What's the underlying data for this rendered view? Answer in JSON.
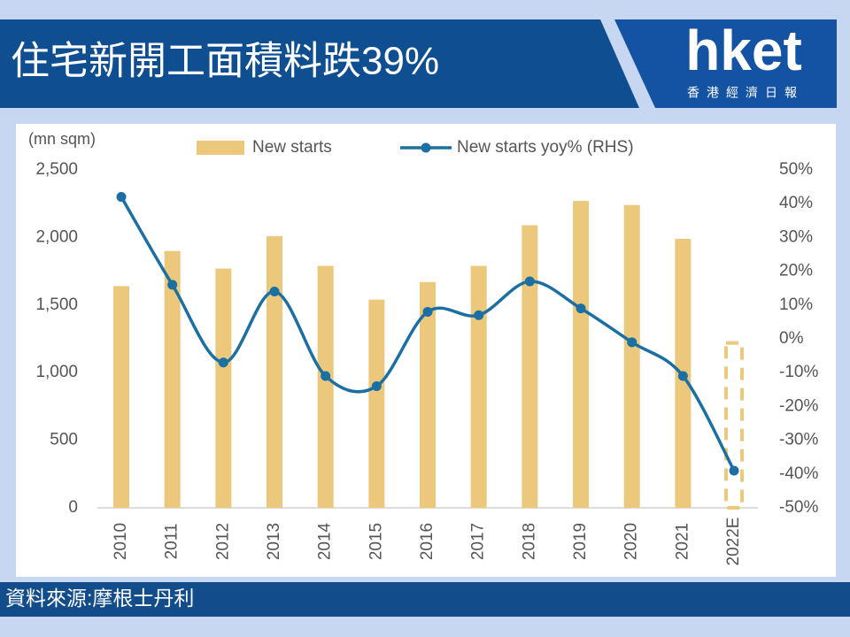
{
  "header": {
    "title": "住宅新開工面積料跌39%",
    "logo": "hket",
    "logo_subtitle": "香港經濟日報"
  },
  "footer": {
    "source": "資料來源:摩根士丹利"
  },
  "chart_data": {
    "type": "bar-line",
    "y_label": "(mn sqm)",
    "categories": [
      "2010",
      "2011",
      "2012",
      "2013",
      "2014",
      "2015",
      "2016",
      "2017",
      "2018",
      "2019",
      "2020",
      "2021",
      "2022E"
    ],
    "series": [
      {
        "name": "New starts",
        "color": "#ebc87b",
        "type": "bar",
        "values": [
          1640,
          1900,
          1770,
          2010,
          1790,
          1540,
          1670,
          1790,
          2090,
          2270,
          2240,
          1990,
          1220
        ]
      },
      {
        "name": "New starts yoy% (RHS)",
        "color": "#1b6fa3",
        "type": "line",
        "axis": "y2",
        "values": [
          42,
          16,
          -7,
          14,
          -11,
          -14,
          8,
          7,
          17,
          9,
          -1,
          -11,
          -39
        ]
      }
    ],
    "ylim": [
      0,
      2500
    ],
    "yticks": [
      0,
      500,
      {
        "value": 1000,
        "label": "1,000"
      },
      {
        "value": 1500,
        "label": "1,500"
      },
      {
        "value": 2000,
        "label": "2,000"
      },
      {
        "value": 2500,
        "label": "2,500"
      }
    ],
    "y2lim": [
      -50,
      50
    ],
    "y2ticks": [
      {
        "value": -50,
        "label": "-50%"
      },
      {
        "value": -40,
        "label": "-40%"
      },
      {
        "value": -30,
        "label": "-30%"
      },
      {
        "value": -20,
        "label": "-20%"
      },
      {
        "value": -10,
        "label": "-10%"
      },
      {
        "value": 0,
        "label": "0%"
      },
      {
        "value": 10,
        "label": "10%"
      },
      {
        "value": 20,
        "label": "20%"
      },
      {
        "value": 30,
        "label": "30%"
      },
      {
        "value": 40,
        "label": "40%"
      },
      {
        "value": 50,
        "label": "50%"
      }
    ]
  }
}
